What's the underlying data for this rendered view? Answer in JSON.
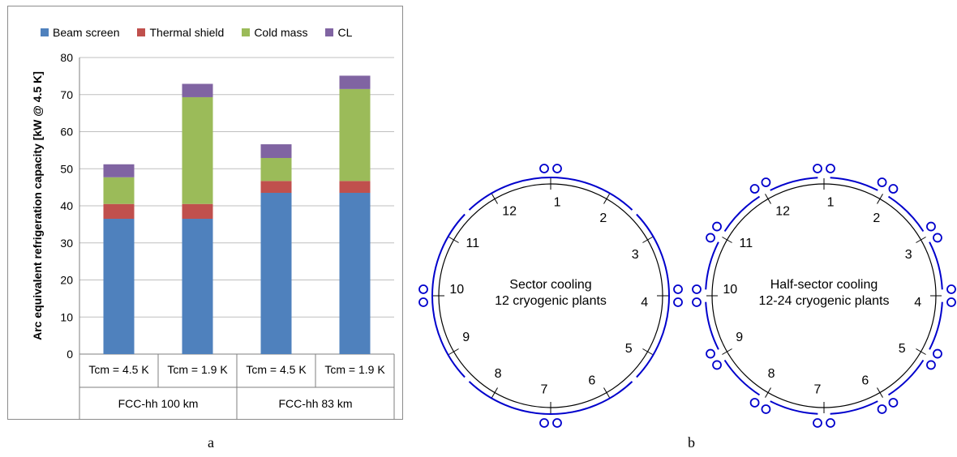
{
  "panel_a": {
    "caption": "a",
    "chart_data": {
      "type": "bar",
      "stacked": true,
      "ylabel": "Arc equivalent refrigeration capacity [kW @ 4.5 K]",
      "ylim": [
        0,
        80
      ],
      "yticks": [
        0,
        10,
        20,
        30,
        40,
        50,
        60,
        70,
        80
      ],
      "grid": true,
      "legend_position": "top",
      "categories": [
        "Tcm = 4.5 K",
        "Tcm = 1.9 K",
        "Tcm = 4.5 K",
        "Tcm = 1.9 K"
      ],
      "groups": [
        {
          "label": "FCC-hh 100 km",
          "span": [
            0,
            1
          ]
        },
        {
          "label": "FCC-hh 83 km",
          "span": [
            2,
            3
          ]
        }
      ],
      "series": [
        {
          "name": "Beam screen",
          "color": "#4f81bd",
          "values": [
            36.5,
            36.5,
            43.5,
            43.5
          ]
        },
        {
          "name": "Thermal shield",
          "color": "#c0504d",
          "values": [
            4.0,
            4.0,
            3.2,
            3.2
          ]
        },
        {
          "name": "Cold mass",
          "color": "#9bbb59",
          "values": [
            7.2,
            28.8,
            6.2,
            24.8
          ]
        },
        {
          "name": "CL",
          "color": "#8064a2",
          "values": [
            3.5,
            3.6,
            3.7,
            3.6
          ]
        }
      ]
    }
  },
  "panel_b": {
    "caption": "b",
    "sector_cooling": {
      "title_line1": "Sector cooling",
      "title_line2": "12 cryogenic plants",
      "numbers": [
        "1",
        "2",
        "3",
        "4",
        "5",
        "6",
        "7",
        "8",
        "9",
        "10",
        "11",
        "12"
      ]
    },
    "half_sector_cooling": {
      "title_line1": "Half-sector cooling",
      "title_line2": "12-24 cryogenic plants",
      "numbers": [
        "1",
        "2",
        "3",
        "4",
        "5",
        "6",
        "7",
        "8",
        "9",
        "10",
        "11",
        "12"
      ]
    },
    "line_color": "#0000cc"
  }
}
